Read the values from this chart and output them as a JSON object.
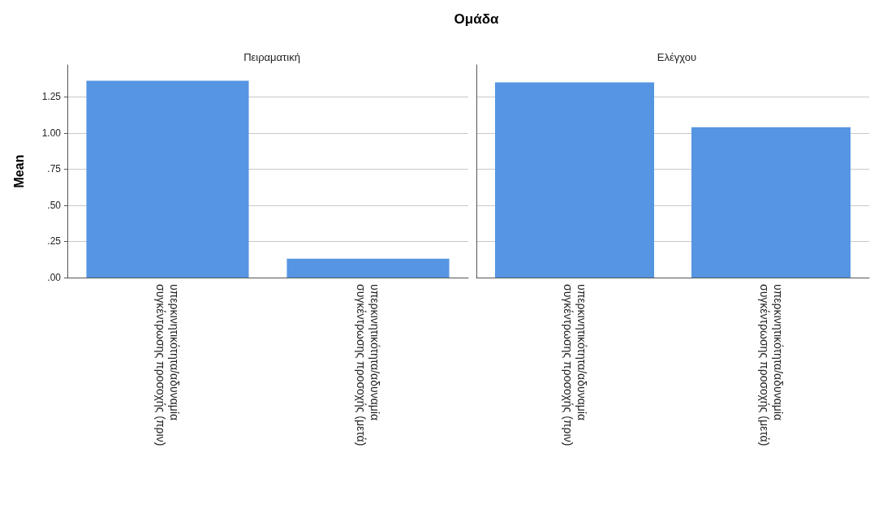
{
  "chart_data": [
    {
      "type": "bar",
      "title": "Πειραματική",
      "ylabel": "Mean",
      "annotations": [
        "Ομάδα"
      ],
      "categories": [
        "υπερκινητικότητα/αδυναμία συγκέντρωσης προσοχής (πριν)",
        "υπερκινητικότητα/αδυναμία συγκέντρωσης προσοχής (μετά)"
      ],
      "values": [
        1.36,
        0.13
      ],
      "color": "#5595e2",
      "ylim": [
        0,
        1.47
      ],
      "yticks": [
        {
          "value": 0,
          "label": ".00"
        },
        {
          "value": 0.25,
          "label": ".25"
        },
        {
          "value": 0.5,
          "label": ".50"
        },
        {
          "value": 0.75,
          "label": ".75"
        },
        {
          "value": 1,
          "label": "1.00"
        },
        {
          "value": 1.25,
          "label": "1.25"
        }
      ],
      "grid": "y"
    },
    {
      "type": "bar",
      "title": "Ελέγχου",
      "categories": [
        "υπερκινητικότητα/αδυναμία συγκέντρωσης προσοχής (πριν)",
        "υπερκινητικότητα/αδυναμία συγκέντρωσης προσοχής (μετά)"
      ],
      "values": [
        1.35,
        1.04
      ],
      "color": "#5595e2",
      "ylim": [
        0,
        1.47
      ],
      "yticks": [
        0,
        0.25,
        0.5,
        0.75,
        1,
        1.25
      ],
      "grid": "y",
      "tick_labels": "x"
    }
  ]
}
